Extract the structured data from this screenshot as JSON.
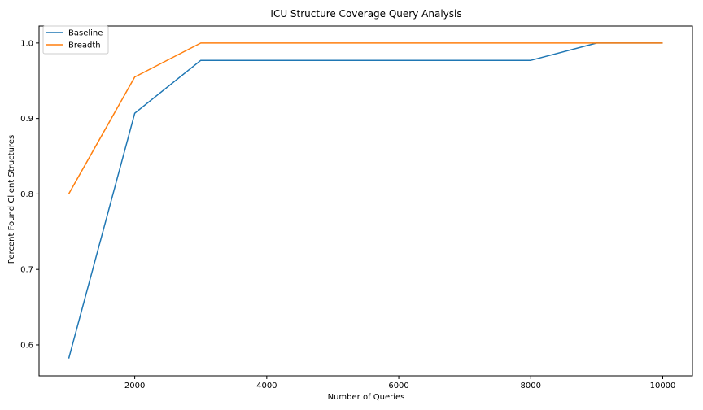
{
  "chart_data": {
    "type": "line",
    "title": "ICU Structure Coverage Query Analysis",
    "xlabel": "Number of Queries",
    "ylabel": "Percent Found Client Structures",
    "xlim": [
      550,
      10450
    ],
    "ylim": [
      0.559,
      1.0225
    ],
    "xticks": [
      2000,
      4000,
      6000,
      8000,
      10000
    ],
    "yticks": [
      0.6,
      0.7,
      0.8,
      0.9,
      1.0
    ],
    "grid": false,
    "legend_position": "upper left",
    "x": [
      1000,
      2000,
      3000,
      4000,
      5000,
      6000,
      7000,
      8000,
      9000,
      10000
    ],
    "series": [
      {
        "name": "Baseline",
        "color": "#1f77b4",
        "values": [
          0.582,
          0.907,
          0.977,
          0.977,
          0.977,
          0.977,
          0.977,
          0.977,
          1.0,
          1.0
        ]
      },
      {
        "name": "Breadth",
        "color": "#ff7f0e",
        "values": [
          0.8,
          0.955,
          1.0,
          1.0,
          1.0,
          1.0,
          1.0,
          1.0,
          1.0,
          1.0
        ]
      }
    ]
  }
}
